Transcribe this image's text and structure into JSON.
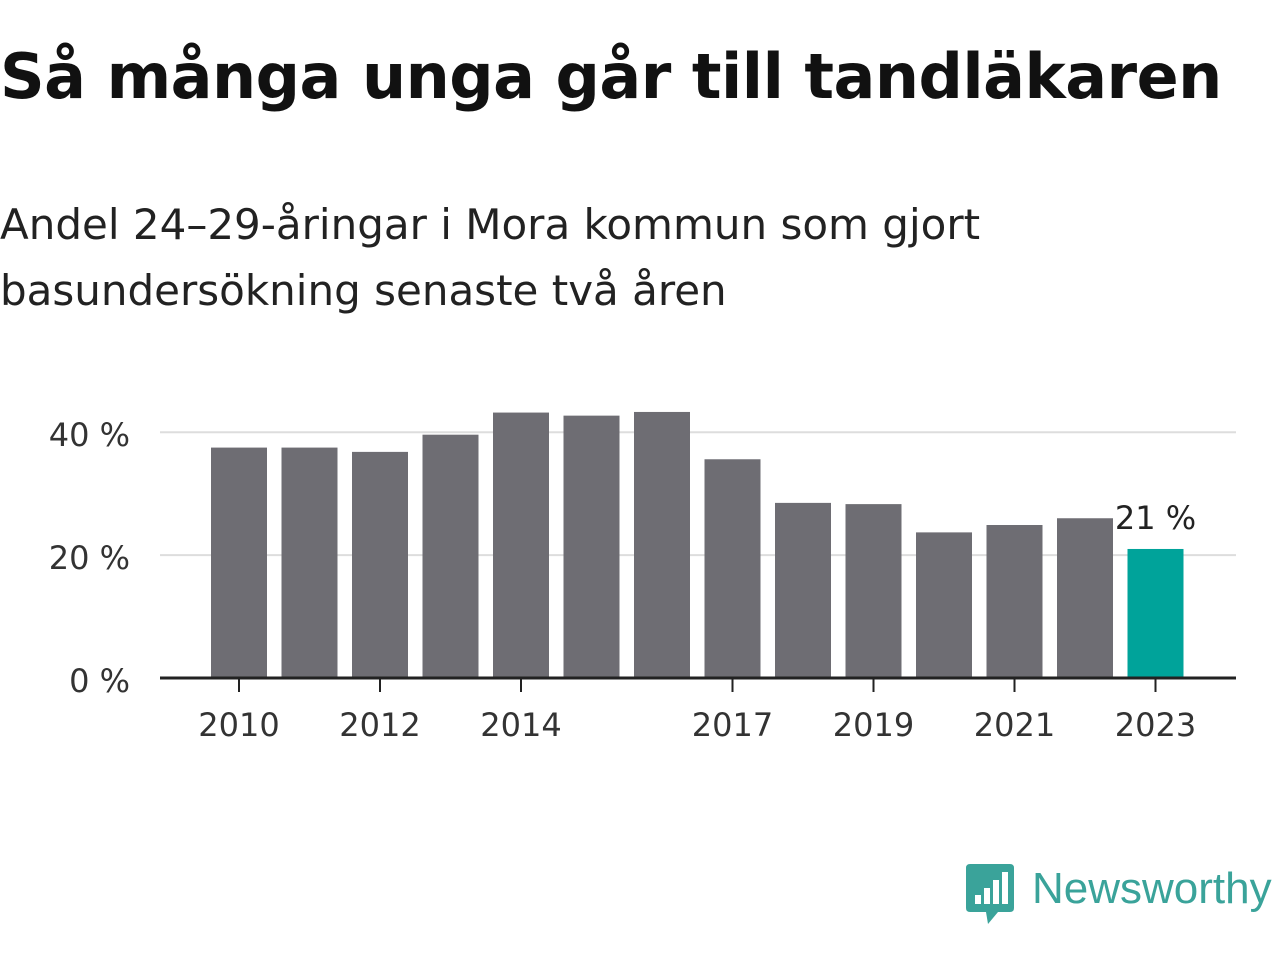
{
  "title": "Så många unga går till tandläkaren",
  "subtitle": "Andel 24–29-åringar i Mora kommun som gjort basundersökning senaste två åren",
  "brand": {
    "name": "Newsworthy",
    "color": "#3aa39a",
    "icon": "bar-chart-speech-bubble-icon"
  },
  "colors": {
    "bar": "#6e6d73",
    "highlight": "#00a39a",
    "grid": "#dddddd",
    "axis": "#222222"
  },
  "chart_data": {
    "type": "bar",
    "categories": [
      "2010",
      "2011",
      "2012",
      "2013",
      "2014",
      "2015",
      "2016",
      "2017",
      "2018",
      "2019",
      "2020",
      "2021",
      "2022",
      "2023"
    ],
    "values": [
      37.5,
      37.5,
      36.8,
      39.6,
      43.2,
      42.7,
      43.3,
      35.6,
      28.5,
      28.3,
      23.7,
      24.9,
      26.0,
      21.0
    ],
    "highlight_index": 13,
    "x_tick_labels": [
      "2010",
      "2012",
      "2014",
      "2017",
      "2019",
      "2021",
      "2023"
    ],
    "y_ticks": [
      0,
      20,
      40
    ],
    "y_tick_labels": [
      "0 %",
      "20 %",
      "40 %"
    ],
    "ylim": [
      0,
      45
    ],
    "grid": true,
    "annotation": {
      "index": 13,
      "text": "21 %"
    },
    "xlabel": "",
    "ylabel": ""
  }
}
